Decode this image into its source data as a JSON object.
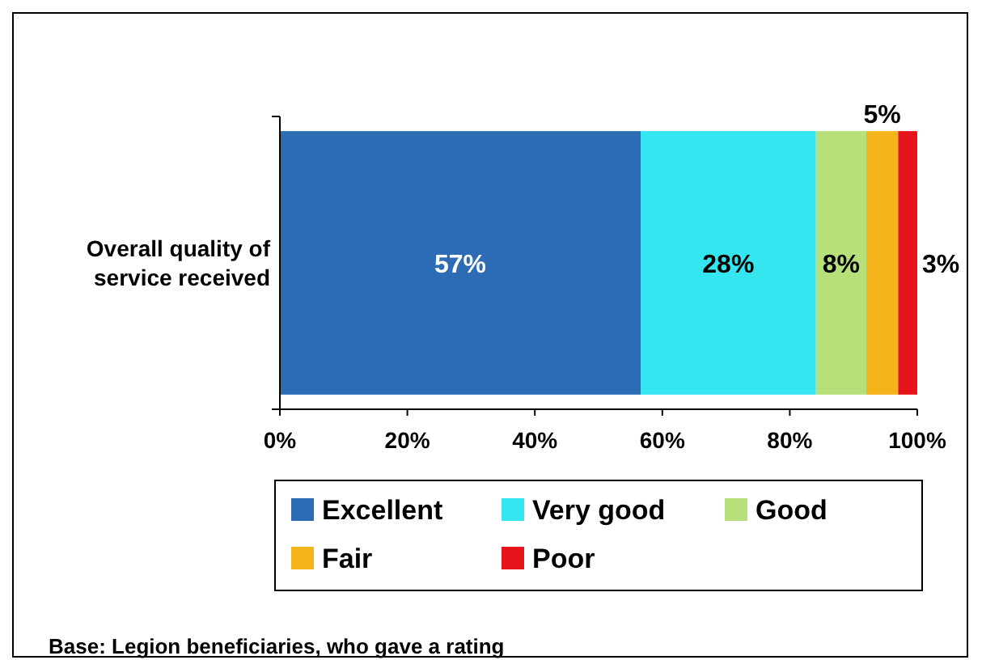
{
  "chart_data": {
    "type": "bar",
    "orientation": "horizontal",
    "stacked": true,
    "categories": [
      "Overall quality of service received"
    ],
    "series": [
      {
        "name": "Excellent",
        "color": "#2b6cb4",
        "values": [
          56.6
        ],
        "value_labels": [
          "57%"
        ]
      },
      {
        "name": "Very good",
        "color": "#33e6f0",
        "values": [
          27.5
        ],
        "value_labels": [
          "28%"
        ]
      },
      {
        "name": "Good",
        "color": "#b8e07a",
        "values": [
          7.9
        ],
        "value_labels": [
          "8%"
        ]
      },
      {
        "name": "Fair",
        "color": "#f5b31c",
        "values": [
          5.0
        ],
        "value_labels": [
          "5%"
        ]
      },
      {
        "name": "Poor",
        "color": "#e8141c",
        "values": [
          3.0
        ],
        "value_labels": [
          "3%"
        ]
      }
    ],
    "xlim": [
      0,
      100
    ],
    "xticks": [
      {
        "value": 0,
        "label": "0%"
      },
      {
        "value": 20,
        "label": "20%"
      },
      {
        "value": 40,
        "label": "40%"
      },
      {
        "value": 60,
        "label": "60%"
      },
      {
        "value": 80,
        "label": "80%"
      },
      {
        "value": 100,
        "label": "100%"
      }
    ],
    "legend": "bottom",
    "annotations": [
      "Base: Legion beneficiaries, who gave a rating"
    ]
  }
}
